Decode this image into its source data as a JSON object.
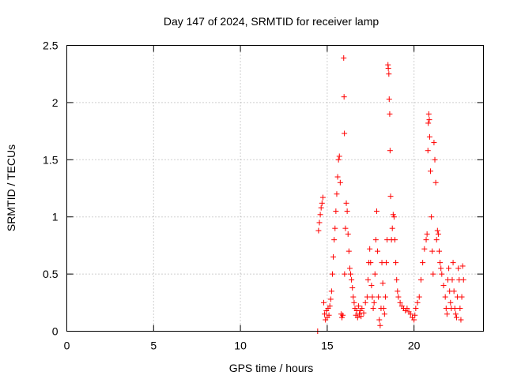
{
  "chart_data": {
    "type": "scatter",
    "title": "Day 147 of 2024, SRMTID for receiver lamp",
    "xlabel": "GPS time / hours",
    "ylabel": "SRMTID / TECUs",
    "xlim": [
      0,
      24
    ],
    "ylim": [
      0,
      2.5
    ],
    "xticks": [
      0,
      5,
      10,
      15,
      20
    ],
    "yticks": [
      0,
      0.5,
      1,
      1.5,
      2,
      2.5
    ],
    "xtick_labels": [
      "0",
      "5",
      "10",
      "15",
      "20"
    ],
    "ytick_labels": [
      "0",
      "0.5",
      "1",
      "1.5",
      "2",
      "2.5"
    ],
    "grid": true,
    "marker": "+",
    "color": "#ff0000",
    "series": [
      {
        "name": "SRMTID",
        "points": [
          [
            14.45,
            0.0
          ],
          [
            14.5,
            0.88
          ],
          [
            14.55,
            0.95
          ],
          [
            14.6,
            1.02
          ],
          [
            14.65,
            1.08
          ],
          [
            14.7,
            1.12
          ],
          [
            14.75,
            1.17
          ],
          [
            14.8,
            0.25
          ],
          [
            14.85,
            0.15
          ],
          [
            14.9,
            0.1
          ],
          [
            14.95,
            0.18
          ],
          [
            15.0,
            0.12
          ],
          [
            15.05,
            0.2
          ],
          [
            15.1,
            0.14
          ],
          [
            15.15,
            0.22
          ],
          [
            15.2,
            0.28
          ],
          [
            15.25,
            0.35
          ],
          [
            15.3,
            0.5
          ],
          [
            15.35,
            0.65
          ],
          [
            15.4,
            0.8
          ],
          [
            15.45,
            0.9
          ],
          [
            15.5,
            1.05
          ],
          [
            15.55,
            1.2
          ],
          [
            15.6,
            1.35
          ],
          [
            15.65,
            1.5
          ],
          [
            15.7,
            1.53
          ],
          [
            15.75,
            1.3
          ],
          [
            15.8,
            0.15
          ],
          [
            15.85,
            0.12
          ],
          [
            15.9,
            0.14
          ],
          [
            15.95,
            2.39
          ],
          [
            15.97,
            2.05
          ],
          [
            15.99,
            1.73
          ],
          [
            16.0,
            0.5
          ],
          [
            16.05,
            0.9
          ],
          [
            16.1,
            1.12
          ],
          [
            16.15,
            1.05
          ],
          [
            16.2,
            0.85
          ],
          [
            16.25,
            0.7
          ],
          [
            16.3,
            0.55
          ],
          [
            16.35,
            0.5
          ],
          [
            16.4,
            0.45
          ],
          [
            16.45,
            0.38
          ],
          [
            16.5,
            0.3
          ],
          [
            16.55,
            0.25
          ],
          [
            16.6,
            0.2
          ],
          [
            16.65,
            0.14
          ],
          [
            16.7,
            0.18
          ],
          [
            16.75,
            0.12
          ],
          [
            16.8,
            0.22
          ],
          [
            16.85,
            0.15
          ],
          [
            16.9,
            0.18
          ],
          [
            16.95,
            0.13
          ],
          [
            17.0,
            0.2
          ],
          [
            17.1,
            0.16
          ],
          [
            17.2,
            0.25
          ],
          [
            17.3,
            0.3
          ],
          [
            17.35,
            0.45
          ],
          [
            17.4,
            0.6
          ],
          [
            17.45,
            0.72
          ],
          [
            17.5,
            0.6
          ],
          [
            17.55,
            0.4
          ],
          [
            17.6,
            0.3
          ],
          [
            17.65,
            0.2
          ],
          [
            17.7,
            0.25
          ],
          [
            17.75,
            0.5
          ],
          [
            17.8,
            0.8
          ],
          [
            17.85,
            1.05
          ],
          [
            17.9,
            0.7
          ],
          [
            17.95,
            0.3
          ],
          [
            18.0,
            0.1
          ],
          [
            18.05,
            0.05
          ],
          [
            18.1,
            0.2
          ],
          [
            18.15,
            0.6
          ],
          [
            18.2,
            0.42
          ],
          [
            18.25,
            0.2
          ],
          [
            18.3,
            0.15
          ],
          [
            18.35,
            0.3
          ],
          [
            18.4,
            0.6
          ],
          [
            18.45,
            0.8
          ],
          [
            18.5,
            2.33
          ],
          [
            18.52,
            2.3
          ],
          [
            18.55,
            2.25
          ],
          [
            18.57,
            2.03
          ],
          [
            18.6,
            1.9
          ],
          [
            18.62,
            1.58
          ],
          [
            18.65,
            1.18
          ],
          [
            18.7,
            0.8
          ],
          [
            18.75,
            0.9
          ],
          [
            18.8,
            1.02
          ],
          [
            18.85,
            1.0
          ],
          [
            18.9,
            0.8
          ],
          [
            18.95,
            0.6
          ],
          [
            19.0,
            0.45
          ],
          [
            19.05,
            0.35
          ],
          [
            19.1,
            0.3
          ],
          [
            19.2,
            0.25
          ],
          [
            19.3,
            0.22
          ],
          [
            19.4,
            0.2
          ],
          [
            19.5,
            0.18
          ],
          [
            19.6,
            0.2
          ],
          [
            19.7,
            0.17
          ],
          [
            19.8,
            0.15
          ],
          [
            19.9,
            0.12
          ],
          [
            20.0,
            0.1
          ],
          [
            20.05,
            0.14
          ],
          [
            20.1,
            0.2
          ],
          [
            20.2,
            0.25
          ],
          [
            20.3,
            0.3
          ],
          [
            20.4,
            0.45
          ],
          [
            20.5,
            0.6
          ],
          [
            20.6,
            0.72
          ],
          [
            20.7,
            0.8
          ],
          [
            20.75,
            0.85
          ],
          [
            20.8,
            1.58
          ],
          [
            20.82,
            1.82
          ],
          [
            20.85,
            1.9
          ],
          [
            20.88,
            1.85
          ],
          [
            20.9,
            1.7
          ],
          [
            20.95,
            1.4
          ],
          [
            21.0,
            1.0
          ],
          [
            21.05,
            0.7
          ],
          [
            21.1,
            0.5
          ],
          [
            21.15,
            1.65
          ],
          [
            21.2,
            1.5
          ],
          [
            21.25,
            1.3
          ],
          [
            21.3,
            0.8
          ],
          [
            21.35,
            0.88
          ],
          [
            21.4,
            0.85
          ],
          [
            21.45,
            0.7
          ],
          [
            21.5,
            0.6
          ],
          [
            21.55,
            0.55
          ],
          [
            21.6,
            0.5
          ],
          [
            21.7,
            0.4
          ],
          [
            21.8,
            0.3
          ],
          [
            21.85,
            0.2
          ],
          [
            21.9,
            0.15
          ],
          [
            21.95,
            0.45
          ],
          [
            22.0,
            0.55
          ],
          [
            22.05,
            0.35
          ],
          [
            22.1,
            0.25
          ],
          [
            22.15,
            0.2
          ],
          [
            22.2,
            0.45
          ],
          [
            22.25,
            0.6
          ],
          [
            22.3,
            0.35
          ],
          [
            22.35,
            0.2
          ],
          [
            22.4,
            0.15
          ],
          [
            22.45,
            0.12
          ],
          [
            22.5,
            0.3
          ],
          [
            22.55,
            0.55
          ],
          [
            22.6,
            0.45
          ],
          [
            22.65,
            0.2
          ],
          [
            22.7,
            0.1
          ],
          [
            22.75,
            0.3
          ],
          [
            22.8,
            0.57
          ],
          [
            22.85,
            0.45
          ]
        ]
      }
    ]
  }
}
